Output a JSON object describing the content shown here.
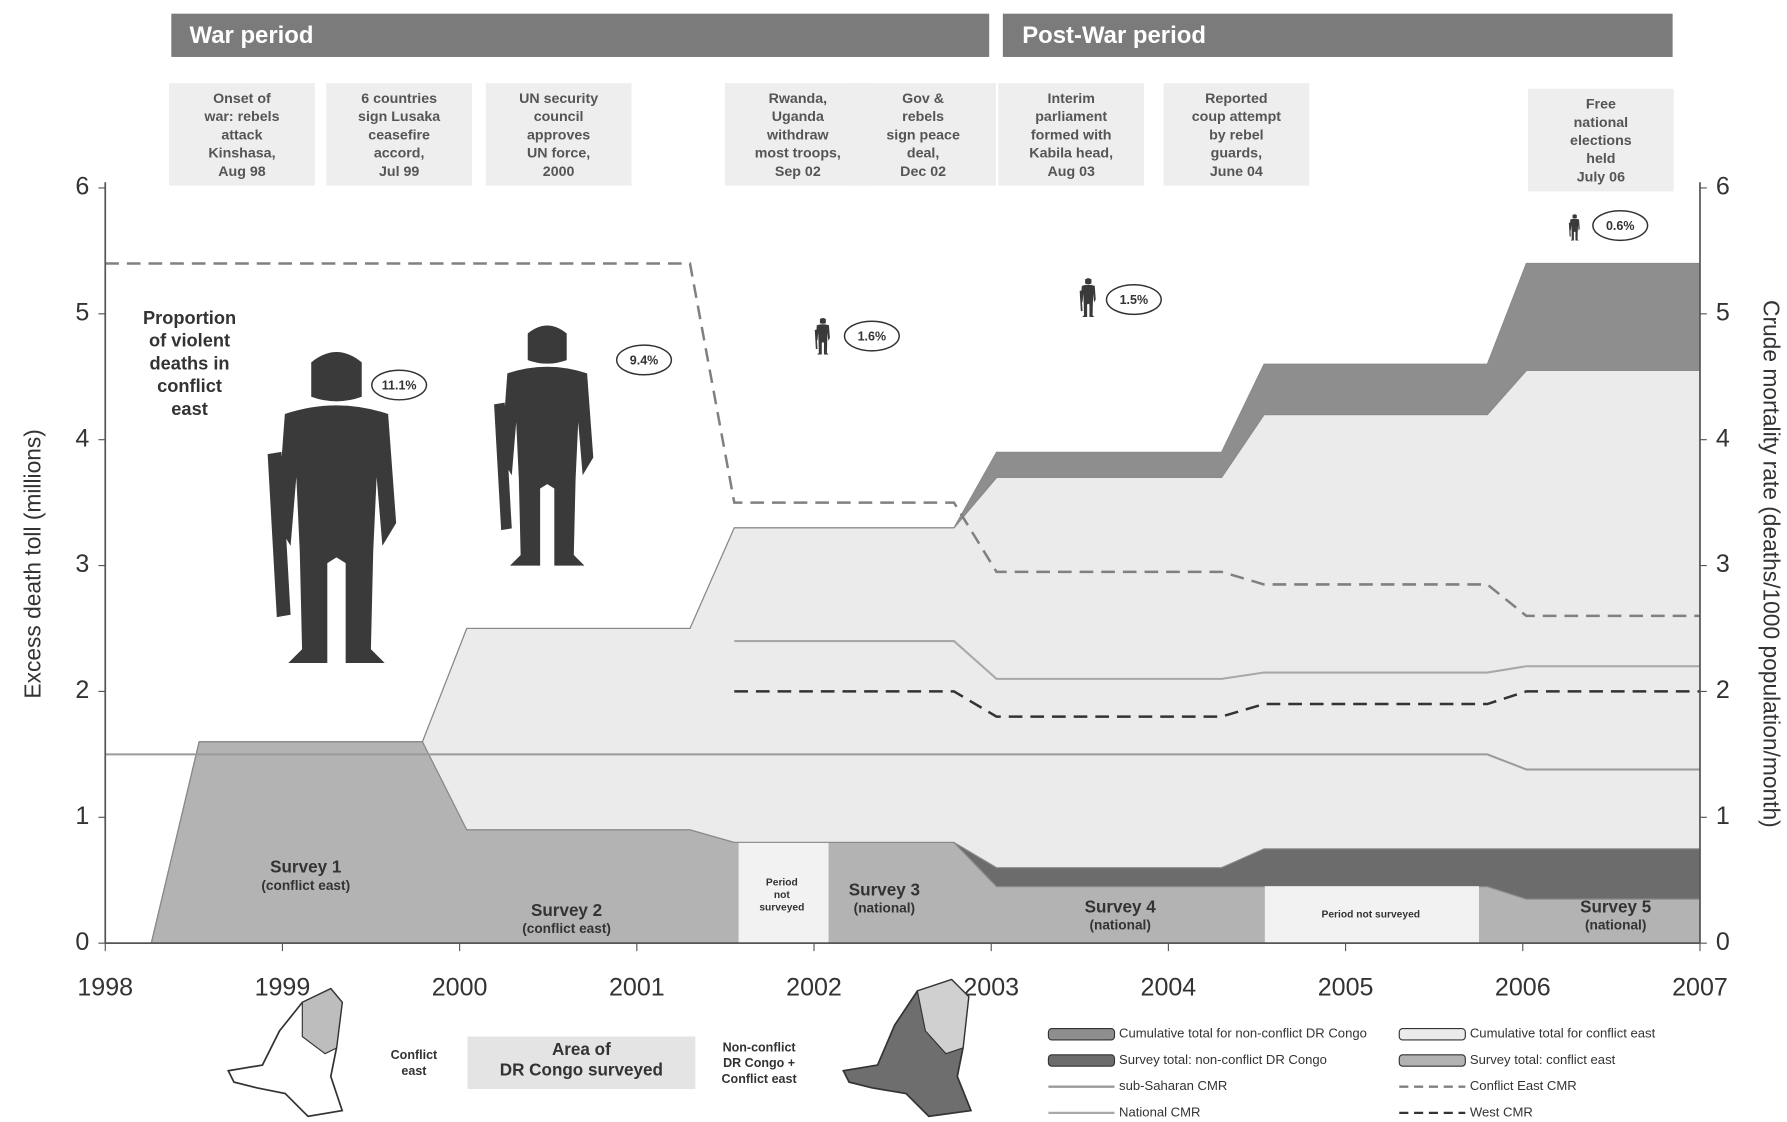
{
  "chart_data": {
    "type": "area",
    "periods": [
      "War period",
      "Post-War period"
    ],
    "events": [
      [
        "Onset of",
        "war: rebels",
        "attack",
        "Kinshasa,",
        "Aug 98"
      ],
      [
        "6 countries",
        "sign Lusaka",
        "ceasefire",
        "accord,",
        "Jul 99"
      ],
      [
        "UN security",
        "council",
        "approves",
        "UN force,",
        "2000"
      ],
      [
        "Rwanda,",
        "Uganda",
        "withdraw",
        "most troops,",
        "Sep 02"
      ],
      [
        "Gov &",
        "rebels",
        "sign peace",
        "deal,",
        "Dec 02"
      ],
      [
        "Interim",
        "parliament",
        "formed with",
        "Kabila head,",
        "Aug 03"
      ],
      [
        "Reported",
        "coup attempt",
        "by rebel",
        "guards,",
        "June 04"
      ],
      [
        "Free",
        "national",
        "elections",
        "held",
        "July 06"
      ]
    ],
    "violent_title": [
      "Proportion",
      "of violent",
      "deaths in",
      "conflict",
      "east"
    ],
    "violent_labels": [
      "11.1%",
      "9.4%",
      "1.6%",
      "1.5%",
      "0.6%"
    ],
    "survey_labels": [
      [
        "Survey 1",
        "(conflict east)"
      ],
      [
        "Survey 2",
        "(conflict east)"
      ],
      [
        "Period",
        "not",
        "surveyed"
      ],
      [
        "Survey 3",
        "(national)"
      ],
      [
        "Survey 4",
        "(national)"
      ],
      [
        "Period not surveyed"
      ],
      [
        "Survey 5",
        "(national)"
      ]
    ],
    "ylabel": "Excess death toll (millions)",
    "y2label": "Crude mortality rate (deaths/1000 population/month)",
    "xlim": [
      1998,
      2007
    ],
    "xticks": [
      1998,
      1999,
      2000,
      2001,
      2002,
      2003,
      2004,
      2005,
      2006,
      2007
    ],
    "ylim": [
      0,
      6
    ],
    "yticks": [
      0,
      1,
      2,
      3,
      4,
      5,
      6
    ],
    "y2lim": [
      0,
      6
    ],
    "y2ticks": [
      0,
      1,
      2,
      3,
      4,
      5,
      6
    ],
    "map_labels": {
      "left": [
        "Conflict",
        "east"
      ],
      "center": [
        "Area of",
        "DR Congo surveyed"
      ],
      "right": [
        "Non-conflict",
        "DR Congo +",
        "Conflict east"
      ]
    },
    "stacked": true,
    "series": [
      {
        "name": "Cumulative total for non-conflict DR Congo",
        "kind": "area",
        "color": "#8e8e8e",
        "x": [
          1998.26,
          1998.53,
          1999.79,
          2000.04,
          2001.3,
          2001.55,
          2002.79,
          2003.03,
          2004.3,
          2004.54,
          2005.8,
          2006.02,
          2007
        ],
        "values": [
          0,
          0,
          0,
          0,
          0,
          0,
          0,
          0.2,
          0.2,
          0.4,
          0.4,
          0.85,
          0.85
        ]
      },
      {
        "name": "Cumulative total for conflict east",
        "kind": "area",
        "color": "#ebebeb",
        "x": [
          1998.26,
          1998.53,
          1999.79,
          2000.04,
          2001.3,
          2001.55,
          2002.79,
          2003.03,
          2004.3,
          2004.54,
          2005.8,
          2006.02,
          2007
        ],
        "values": [
          0,
          1.6,
          1.6,
          2.5,
          2.5,
          3.3,
          3.3,
          3.7,
          3.7,
          4.2,
          4.2,
          4.55,
          4.55
        ]
      },
      {
        "name": "Survey total: non-conflict DR Congo",
        "kind": "area",
        "color": "#6c6c6c",
        "x": [
          1998.26,
          1998.53,
          1999.79,
          2000.04,
          2001.3,
          2001.55,
          2002.79,
          2003.03,
          2004.3,
          2004.54,
          2005.8,
          2006.02,
          2007
        ],
        "values": [
          0,
          0,
          0,
          0,
          0,
          0,
          0,
          0.15,
          0.15,
          0.3,
          0.3,
          0.4,
          0.4
        ]
      },
      {
        "name": "Survey total: conflict east",
        "kind": "area",
        "color": "#b3b3b3",
        "x": [
          1998.26,
          1998.53,
          1999.79,
          2000.04,
          2001.3,
          2001.55,
          2002.79,
          2003.03,
          2004.3,
          2004.54,
          2005.8,
          2006.02,
          2007
        ],
        "values": [
          0,
          1.6,
          1.6,
          0.9,
          0.9,
          0.8,
          0.8,
          0.45,
          0.45,
          0.45,
          0.45,
          0.35,
          0.35
        ]
      },
      {
        "name": "sub-Saharan CMR",
        "kind": "line",
        "axis": "y2",
        "color": "#9a9a9a",
        "dash": false,
        "x": [
          1998,
          2005.8,
          2006.02,
          2007
        ],
        "values": [
          1.5,
          1.5,
          1.38,
          1.38
        ]
      },
      {
        "name": "Conflict East CMR",
        "kind": "line",
        "axis": "y2",
        "color": "#808080",
        "dash": true,
        "x": [
          1998,
          2001.3,
          2001.55,
          2002.79,
          2003.03,
          2004.3,
          2004.54,
          2005.8,
          2006.02,
          2007
        ],
        "values": [
          5.4,
          5.4,
          3.5,
          3.5,
          2.95,
          2.95,
          2.85,
          2.85,
          2.6,
          2.6
        ]
      },
      {
        "name": "National CMR",
        "kind": "line",
        "axis": "y2",
        "color": "#a8a8a8",
        "dash": false,
        "x": [
          2001.55,
          2002.79,
          2003.03,
          2004.3,
          2004.54,
          2005.8,
          2006.02,
          2007
        ],
        "values": [
          2.4,
          2.4,
          2.1,
          2.1,
          2.15,
          2.15,
          2.2,
          2.2
        ]
      },
      {
        "name": "West CMR",
        "kind": "line",
        "axis": "y2",
        "color": "#333333",
        "dash": true,
        "x": [
          2001.55,
          2002.79,
          2003.03,
          2004.3,
          2004.54,
          2005.8,
          2006.02,
          2007
        ],
        "values": [
          2.0,
          2.0,
          1.8,
          1.8,
          1.9,
          1.9,
          2.0,
          2.0
        ]
      }
    ]
  }
}
